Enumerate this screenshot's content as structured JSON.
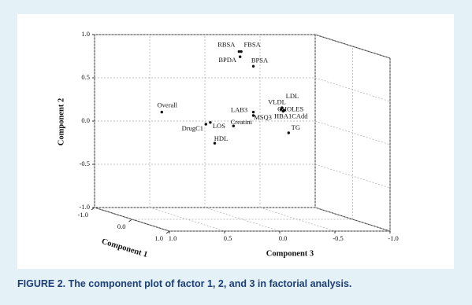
{
  "chart_data": {
    "type": "scatter3d",
    "x_label": "Component 1",
    "y_label": "Component 2",
    "z_label": "Component 3",
    "names": [
      "RBSA",
      "FBSA",
      "BPDA",
      "BPSA",
      "Overall",
      "LAB3",
      "VLDL",
      "LDL",
      "CHOLES",
      "HBA1CAdd",
      "MSQ3",
      "Creatini",
      "LOS",
      "DrugC1",
      "HDL",
      "TG"
    ],
    "x": [
      0,
      0,
      0,
      0,
      0,
      0,
      0,
      0,
      0,
      0,
      0,
      0,
      0,
      0,
      0,
      0
    ],
    "y": [
      0.94,
      0.94,
      0.88,
      0.77,
      0.24,
      0.24,
      0.27,
      0.29,
      0.26,
      0.25,
      0.2,
      0.08,
      0.12,
      0.1,
      -0.12,
      0.0
    ],
    "z": [
      0.03,
      0.01,
      0.02,
      -0.1,
      0.73,
      -0.1,
      -0.35,
      -0.36,
      -0.38,
      -0.37,
      -0.1,
      0.08,
      0.29,
      0.33,
      0.25,
      -0.42
    ],
    "color": "#111111",
    "xlim": [
      -1,
      1
    ],
    "ylim": [
      -1,
      1
    ],
    "zlim": [
      1,
      -1
    ],
    "xticks": [
      {
        "value": -1,
        "label": "-1.0"
      },
      {
        "value": 0,
        "label": "0.0"
      },
      {
        "value": 1,
        "label": "1.0"
      }
    ],
    "yticks": [
      {
        "value": 1,
        "label": "1.0"
      },
      {
        "value": 0.5,
        "label": "0.5"
      },
      {
        "value": 0,
        "label": "0.0"
      },
      {
        "value": -0.5,
        "label": "-0.5"
      },
      {
        "value": -1,
        "label": "-1.0"
      }
    ],
    "zticks": [
      {
        "value": 1,
        "label": "1.0"
      },
      {
        "value": 0.5,
        "label": "0.5"
      },
      {
        "value": 0,
        "label": "0.0"
      },
      {
        "value": -0.5,
        "label": "-0.5"
      },
      {
        "value": -1,
        "label": "-1.0"
      }
    ],
    "grid": true
  },
  "caption": "FIGURE 2. The component plot of factor 1, 2, and 3 in factorial analysis."
}
